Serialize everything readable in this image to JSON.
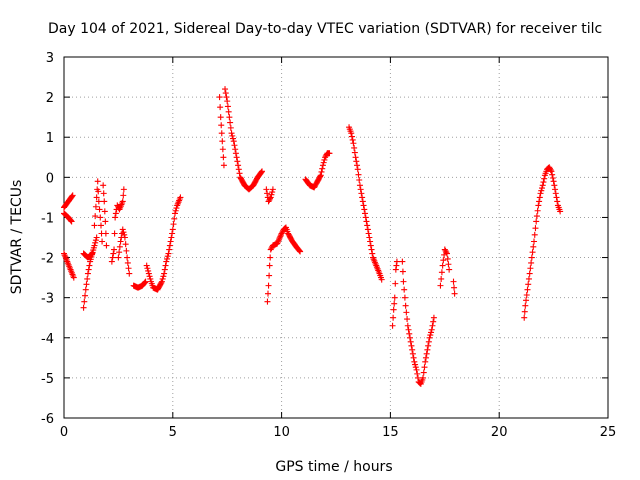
{
  "chart_data": {
    "type": "scatter",
    "title": "Day 104 of 2021, Sidereal Day-to-day VTEC variation (SDTVAR) for receiver tilc",
    "xlabel": "GPS time / hours",
    "ylabel": "SDTVAR / TECUs",
    "xlim": [
      0,
      25
    ],
    "ylim": [
      -6,
      3
    ],
    "xticks": [
      0,
      5,
      10,
      15,
      20,
      25
    ],
    "yticks": [
      -6,
      -5,
      -4,
      -3,
      -2,
      -1,
      0,
      1,
      2,
      3
    ],
    "grid": true,
    "marker": "+",
    "color": "#ff0000",
    "segments": [
      [
        [
          0.0,
          -0.75
        ],
        [
          0.2,
          -0.6
        ],
        [
          0.4,
          -0.45
        ]
      ],
      [
        [
          0.0,
          -0.9
        ],
        [
          0.2,
          -1.0
        ],
        [
          0.35,
          -1.1
        ]
      ],
      [
        [
          0.0,
          -1.9
        ],
        [
          0.15,
          -2.1
        ],
        [
          0.3,
          -2.3
        ],
        [
          0.45,
          -2.5
        ]
      ],
      [
        [
          0.9,
          -3.25
        ],
        [
          1.0,
          -2.8
        ],
        [
          1.1,
          -2.4
        ],
        [
          1.2,
          -2.1
        ],
        [
          1.4,
          -1.7
        ],
        [
          1.5,
          -1.5
        ]
      ],
      [
        [
          0.9,
          -1.9
        ],
        [
          1.1,
          -2.0
        ],
        [
          1.3,
          -1.9
        ]
      ],
      [
        [
          1.4,
          -1.2
        ],
        [
          1.5,
          -0.5
        ],
        [
          1.55,
          -0.1
        ],
        [
          1.6,
          -0.6
        ],
        [
          1.7,
          -1.2
        ],
        [
          1.75,
          -1.6
        ]
      ],
      [
        [
          1.8,
          -0.2
        ],
        [
          1.85,
          -0.6
        ],
        [
          1.9,
          -1.1
        ],
        [
          1.95,
          -1.7
        ]
      ],
      [
        [
          2.2,
          -2.1
        ],
        [
          2.3,
          -1.8
        ],
        [
          2.35,
          -1.0
        ],
        [
          2.45,
          -0.7
        ],
        [
          2.55,
          -0.8
        ],
        [
          2.7,
          -0.6
        ],
        [
          2.75,
          -0.3
        ]
      ],
      [
        [
          2.5,
          -2.0
        ],
        [
          2.6,
          -1.6
        ],
        [
          2.7,
          -1.3
        ],
        [
          2.8,
          -1.5
        ],
        [
          2.9,
          -2.0
        ],
        [
          3.0,
          -2.4
        ]
      ],
      [
        [
          3.2,
          -2.7
        ],
        [
          3.4,
          -2.75
        ],
        [
          3.6,
          -2.7
        ],
        [
          3.75,
          -2.6
        ]
      ],
      [
        [
          3.8,
          -2.2
        ],
        [
          3.9,
          -2.4
        ],
        [
          4.0,
          -2.6
        ],
        [
          4.1,
          -2.75
        ],
        [
          4.3,
          -2.8
        ],
        [
          4.5,
          -2.6
        ],
        [
          4.6,
          -2.4
        ],
        [
          4.7,
          -2.1
        ],
        [
          4.8,
          -1.9
        ],
        [
          4.9,
          -1.6
        ],
        [
          5.0,
          -1.3
        ],
        [
          5.1,
          -0.9
        ],
        [
          5.2,
          -0.7
        ],
        [
          5.35,
          -0.5
        ]
      ],
      [
        [
          7.15,
          2.0
        ],
        [
          7.2,
          1.5
        ],
        [
          7.25,
          1.1
        ],
        [
          7.3,
          0.7
        ],
        [
          7.35,
          0.3
        ]
      ],
      [
        [
          7.4,
          2.2
        ],
        [
          7.5,
          1.9
        ],
        [
          7.6,
          1.5
        ],
        [
          7.7,
          1.1
        ],
        [
          7.8,
          0.9
        ],
        [
          7.9,
          0.6
        ],
        [
          8.0,
          0.3
        ],
        [
          8.1,
          0.0
        ],
        [
          8.3,
          -0.2
        ],
        [
          8.5,
          -0.3
        ],
        [
          8.7,
          -0.2
        ],
        [
          8.9,
          0.0
        ],
        [
          9.1,
          0.15
        ]
      ],
      [
        [
          9.3,
          -0.3
        ],
        [
          9.4,
          -0.6
        ],
        [
          9.5,
          -0.5
        ],
        [
          9.6,
          -0.3
        ]
      ],
      [
        [
          9.35,
          -3.1
        ],
        [
          9.4,
          -2.7
        ],
        [
          9.45,
          -2.2
        ],
        [
          9.5,
          -1.8
        ],
        [
          9.6,
          -1.7
        ],
        [
          9.8,
          -1.65
        ],
        [
          10.0,
          -1.4
        ],
        [
          10.1,
          -1.3
        ],
        [
          10.2,
          -1.25
        ],
        [
          10.3,
          -1.4
        ],
        [
          10.5,
          -1.6
        ],
        [
          10.7,
          -1.75
        ],
        [
          10.85,
          -1.85
        ]
      ],
      [
        [
          11.1,
          -0.05
        ],
        [
          11.3,
          -0.2
        ],
        [
          11.5,
          -0.25
        ],
        [
          11.6,
          -0.15
        ],
        [
          11.8,
          0.05
        ],
        [
          11.9,
          0.3
        ],
        [
          12.0,
          0.5
        ],
        [
          12.1,
          0.6
        ],
        [
          12.2,
          0.6
        ]
      ],
      [
        [
          13.1,
          1.25
        ],
        [
          13.2,
          1.1
        ],
        [
          13.3,
          0.85
        ],
        [
          13.4,
          0.5
        ],
        [
          13.5,
          0.2
        ],
        [
          13.6,
          -0.2
        ],
        [
          13.7,
          -0.5
        ],
        [
          13.8,
          -0.8
        ],
        [
          13.9,
          -1.1
        ],
        [
          14.0,
          -1.4
        ],
        [
          14.1,
          -1.7
        ],
        [
          14.2,
          -2.0
        ],
        [
          14.35,
          -2.2
        ],
        [
          14.5,
          -2.4
        ],
        [
          14.6,
          -2.55
        ]
      ],
      [
        [
          15.1,
          -3.7
        ],
        [
          15.15,
          -3.3
        ],
        [
          15.2,
          -3.0
        ],
        [
          15.25,
          -2.3
        ],
        [
          15.3,
          -2.1
        ]
      ],
      [
        [
          15.55,
          -2.1
        ],
        [
          15.6,
          -2.6
        ],
        [
          15.7,
          -3.2
        ],
        [
          15.8,
          -3.7
        ],
        [
          15.9,
          -4.0
        ],
        [
          16.0,
          -4.3
        ],
        [
          16.1,
          -4.6
        ],
        [
          16.2,
          -4.8
        ],
        [
          16.3,
          -5.1
        ],
        [
          16.4,
          -5.15
        ],
        [
          16.5,
          -5.0
        ],
        [
          16.6,
          -4.6
        ],
        [
          16.7,
          -4.3
        ],
        [
          16.8,
          -4.0
        ],
        [
          16.9,
          -3.8
        ],
        [
          17.0,
          -3.5
        ]
      ],
      [
        [
          17.3,
          -2.7
        ],
        [
          17.4,
          -2.2
        ],
        [
          17.5,
          -1.8
        ],
        [
          17.6,
          -1.9
        ],
        [
          17.7,
          -2.3
        ]
      ],
      [
        [
          17.9,
          -2.6
        ],
        [
          17.95,
          -2.9
        ]
      ],
      [
        [
          21.15,
          -3.5
        ],
        [
          21.2,
          -3.2
        ],
        [
          21.3,
          -2.8
        ],
        [
          21.4,
          -2.4
        ],
        [
          21.5,
          -2.0
        ],
        [
          21.6,
          -1.6
        ],
        [
          21.7,
          -1.1
        ],
        [
          21.8,
          -0.7
        ],
        [
          21.9,
          -0.4
        ],
        [
          22.0,
          -0.2
        ],
        [
          22.1,
          0.05
        ],
        [
          22.2,
          0.2
        ],
        [
          22.3,
          0.25
        ],
        [
          22.4,
          0.15
        ],
        [
          22.5,
          -0.1
        ],
        [
          22.6,
          -0.4
        ],
        [
          22.7,
          -0.7
        ],
        [
          22.8,
          -0.85
        ]
      ]
    ]
  }
}
